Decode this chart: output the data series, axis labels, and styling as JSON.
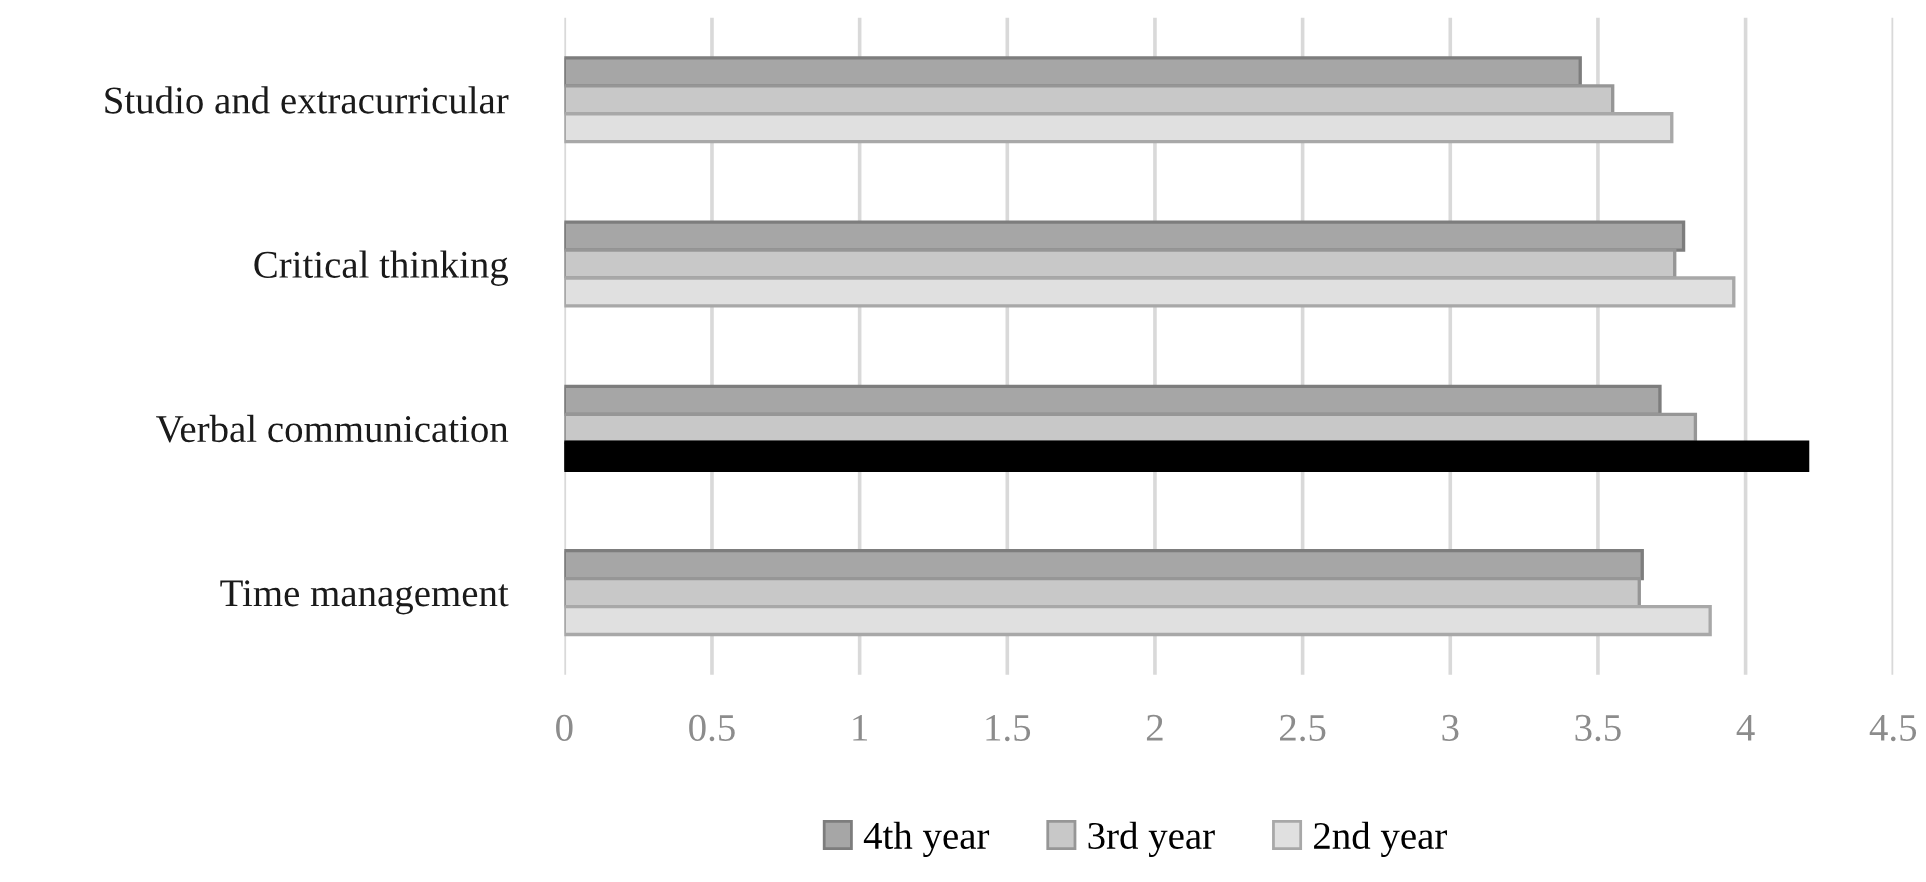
{
  "chart_data": {
    "type": "bar",
    "orientation": "horizontal",
    "categories": [
      "Studio and extracurricular",
      "Critical thinking",
      "Verbal communication",
      "Time management"
    ],
    "series": [
      {
        "name": "4th year",
        "color": "#a6a6a6",
        "values": [
          3.44,
          3.79,
          3.71,
          3.65
        ]
      },
      {
        "name": "3rd year",
        "color": "#c8c8c8",
        "values": [
          3.55,
          3.76,
          3.83,
          3.64
        ]
      },
      {
        "name": "2nd year",
        "color": "#e0e0e0",
        "colors": [
          "#e0e0e0",
          "#e0e0e0",
          "#000000",
          "#e0e0e0"
        ],
        "values": [
          3.75,
          3.96,
          4.21,
          3.88
        ]
      }
    ],
    "xlim": [
      0,
      4.5
    ],
    "xticks": [
      0,
      0.5,
      1,
      1.5,
      2,
      2.5,
      3,
      3.5,
      4,
      4.5
    ],
    "grid": "x",
    "legend": "bottom"
  }
}
